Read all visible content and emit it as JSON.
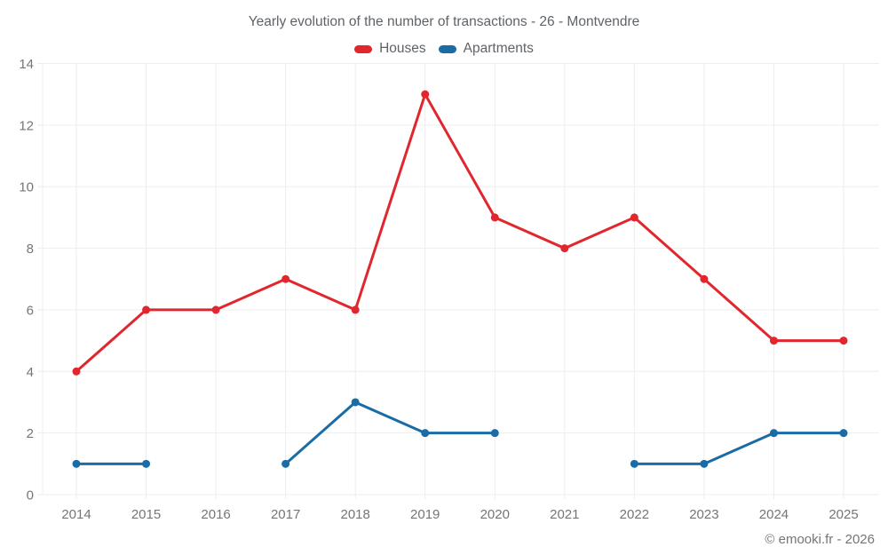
{
  "title": "Yearly evolution of the number of transactions - 26 - Montvendre",
  "footer": "© emooki.fr - 2026",
  "chart_data": {
    "type": "line",
    "categories": [
      "2014",
      "2015",
      "2016",
      "2017",
      "2018",
      "2019",
      "2020",
      "2021",
      "2022",
      "2023",
      "2024",
      "2025"
    ],
    "series": [
      {
        "name": "Houses",
        "color": "#e1262d",
        "values": [
          4,
          6,
          6,
          7,
          6,
          13,
          9,
          8,
          9,
          7,
          5,
          5
        ]
      },
      {
        "name": "Apartments",
        "color": "#1a6ca6",
        "values": [
          1,
          1,
          null,
          1,
          3,
          2,
          2,
          null,
          1,
          1,
          2,
          2
        ]
      }
    ],
    "title": "Yearly evolution of the number of transactions - 26 - Montvendre",
    "xlabel": "",
    "ylabel": "",
    "ylim": [
      0,
      14
    ],
    "ytick_step": 2,
    "grid": true,
    "legend_position": "top",
    "grid_color": "#ededed",
    "axis_text_color": "#757575"
  }
}
